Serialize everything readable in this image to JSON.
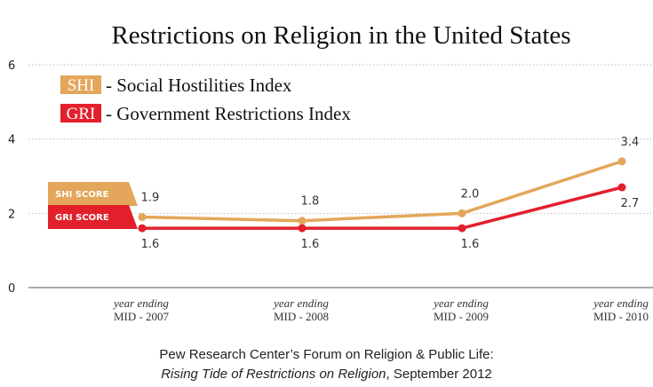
{
  "colors": {
    "shi": "#e3a65a",
    "gri": "#e2202c",
    "grid": "#bdbdbd",
    "axis": "#555555"
  },
  "legend": {
    "shi_abbr": "SHI",
    "shi_text": "- Social Hostilities Index",
    "gri_abbr": "GRI",
    "gri_text": "- Government Restrictions Index"
  },
  "tags": {
    "shi": "SHI SCORE",
    "gri": "GRI SCORE"
  },
  "source": {
    "line1": "Pew Research Center’s Forum on Religion & Public Life:",
    "line2_italic": "Rising Tide of Restrictions on Religion",
    "line2_rest": ", September 2012"
  },
  "chart_data": {
    "type": "line",
    "title": "Restrictions on Religion in the United States",
    "categories": [
      [
        "year ending",
        "MID - 2007"
      ],
      [
        "year ending",
        "MID - 2008"
      ],
      [
        "year ending",
        "MID - 2009"
      ],
      [
        "year ending",
        "MID - 2010"
      ]
    ],
    "ylim": [
      0,
      6
    ],
    "yticks": [
      0,
      2,
      4,
      6
    ],
    "grid": true,
    "legend_position": "top-left",
    "series": [
      {
        "name": "SHI",
        "key": "shi",
        "values": [
          1.9,
          1.8,
          2.0,
          3.4
        ],
        "labels": [
          "1.9",
          "1.8",
          "2.0",
          "3.4"
        ],
        "label_side": "above"
      },
      {
        "name": "GRI",
        "key": "gri",
        "values": [
          1.6,
          1.6,
          1.6,
          2.7
        ],
        "labels": [
          "1.6",
          "1.6",
          "1.6",
          "2.7"
        ],
        "label_side": "below"
      }
    ]
  }
}
